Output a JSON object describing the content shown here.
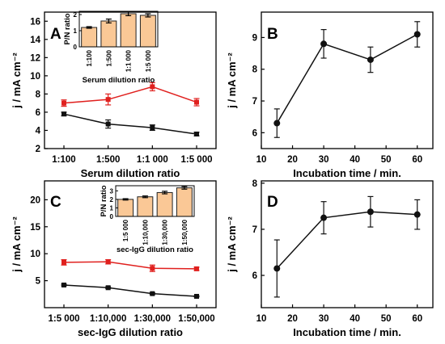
{
  "colors": {
    "series_black": "#111111",
    "series_red": "#e0201e",
    "bar_fill": "#fac896",
    "bar_stroke": "#222222"
  },
  "chart_data": [
    {
      "panel": "A",
      "type": "line",
      "categories": [
        "1:100",
        "1:500",
        "1:1 000",
        "1:5 000"
      ],
      "xlabel": "Serum dilution ratio",
      "ylabel": "j / mA cm⁻²",
      "ylim": [
        2,
        17
      ],
      "yticks": [
        2,
        4,
        6,
        8,
        10,
        12,
        14,
        16
      ],
      "series": [
        {
          "color": "#e0201e",
          "marker": "square",
          "values": [
            7.0,
            7.4,
            8.8,
            7.1
          ],
          "errors": [
            0.35,
            0.6,
            0.45,
            0.4
          ]
        },
        {
          "color": "#111111",
          "marker": "square",
          "values": [
            5.8,
            4.7,
            4.3,
            3.6
          ],
          "errors": [
            0.2,
            0.45,
            0.3,
            0.2
          ]
        }
      ],
      "inset": {
        "type": "bar",
        "categories": [
          "1:100",
          "1:500",
          "1:1 000",
          "1:5 000"
        ],
        "values": [
          1.2,
          1.6,
          2.05,
          1.95
        ],
        "errors": [
          0.05,
          0.12,
          0.12,
          0.1
        ],
        "ylabel": "P/N ratio",
        "xlabel": "Serum dilution ratio",
        "ylim": [
          0,
          2.2
        ],
        "yticks": [
          0,
          1,
          2
        ]
      }
    },
    {
      "panel": "B",
      "type": "line",
      "x": [
        15,
        30,
        45,
        60
      ],
      "values": [
        6.3,
        8.8,
        8.3,
        9.1
      ],
      "errors": [
        0.45,
        0.45,
        0.4,
        0.4
      ],
      "color": "#111111",
      "marker": "circle",
      "xlabel": "Incubation time / min.",
      "ylabel": "j / mA cm⁻²",
      "xlim": [
        10,
        65
      ],
      "ylim": [
        5.5,
        9.8
      ],
      "xticks": [
        10,
        20,
        30,
        40,
        50,
        60
      ],
      "yticks": [
        6,
        7,
        8,
        9
      ]
    },
    {
      "panel": "C",
      "type": "line",
      "categories": [
        "1:5 000",
        "1:10,000",
        "1:30,000",
        "1:50,000"
      ],
      "xlabel": "sec-IgG dilution ratio",
      "ylabel": "j / mA cm⁻²",
      "ylim": [
        0,
        23.5
      ],
      "yticks": [
        5,
        10,
        15,
        20
      ],
      "series": [
        {
          "color": "#e0201e",
          "marker": "square",
          "values": [
            8.4,
            8.5,
            7.3,
            7.2
          ],
          "errors": [
            0.5,
            0.4,
            0.6,
            0.3
          ]
        },
        {
          "color": "#111111",
          "marker": "square",
          "values": [
            4.2,
            3.7,
            2.6,
            2.1
          ],
          "errors": [
            0.15,
            0.15,
            0.15,
            0.1
          ]
        }
      ],
      "inset": {
        "type": "bar",
        "categories": [
          "1:5 000",
          "1:10,000",
          "1:30,000",
          "1:50,000"
        ],
        "values": [
          2.0,
          2.3,
          2.8,
          3.35
        ],
        "errors": [
          0.08,
          0.1,
          0.15,
          0.15
        ],
        "ylabel": "P/N ratio",
        "xlabel": "sec-IgG dilution ratio",
        "ylim": [
          0,
          3.6
        ],
        "yticks": [
          0,
          1,
          2,
          3
        ]
      }
    },
    {
      "panel": "D",
      "type": "line",
      "x": [
        15,
        30,
        45,
        60
      ],
      "values": [
        6.15,
        7.25,
        7.38,
        7.32
      ],
      "errors": [
        0.62,
        0.35,
        0.33,
        0.32
      ],
      "color": "#111111",
      "marker": "circle",
      "xlabel": "Incubation time / min.",
      "ylabel": "j / mA cm⁻²",
      "xlim": [
        10,
        65
      ],
      "ylim": [
        5.3,
        8.05
      ],
      "xticks": [
        10,
        20,
        30,
        40,
        50,
        60
      ],
      "yticks": [
        6,
        7,
        8
      ]
    }
  ]
}
